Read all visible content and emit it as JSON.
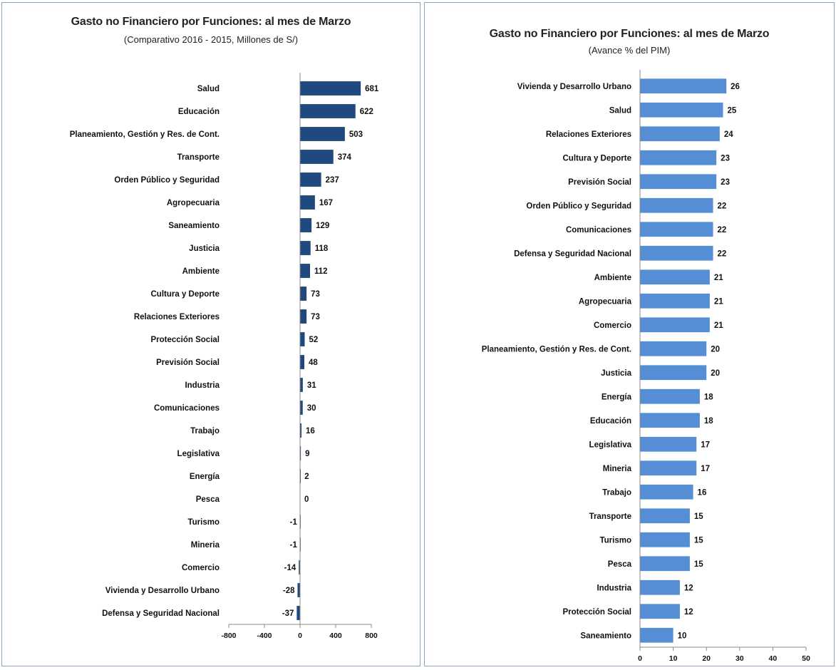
{
  "chart_data": [
    {
      "type": "bar",
      "orientation": "horizontal",
      "title": "Gasto no Financiero por Funciones: al mes de Marzo",
      "subtitle": "(Comparativo  2016 - 2015, Millones de S/)",
      "color": "#1f497d",
      "categories": [
        "Salud",
        "Educación",
        "Planeamiento, Gestión y Res. de Cont.",
        "Transporte",
        "Orden Público y Seguridad",
        "Agropecuaria",
        "Saneamiento",
        "Justicia",
        "Ambiente",
        "Cultura y Deporte",
        "Relaciones Exteriores",
        "Protección Social",
        "Previsión Social",
        "Industria",
        "Comunicaciones",
        "Trabajo",
        "Legislativa",
        "Energía",
        "Pesca",
        "Turismo",
        "Mineria",
        "Comercio",
        "Vivienda y Desarrollo Urbano",
        "Defensa y Seguridad Nacional"
      ],
      "values": [
        681,
        622,
        503,
        374,
        237,
        167,
        129,
        118,
        112,
        73,
        73,
        52,
        48,
        31,
        30,
        16,
        9,
        2,
        0,
        -1,
        -1,
        -14,
        -28,
        -37
      ],
      "xlim": [
        -800,
        800
      ],
      "xticks": [
        -800,
        -400,
        0,
        400,
        800
      ],
      "grid": false
    },
    {
      "type": "bar",
      "orientation": "horizontal",
      "title": "Gasto no Financiero por Funciones: al mes de Marzo",
      "subtitle": "(Avance % del PIM)",
      "color": "#558ed5",
      "categories": [
        "Vivienda y Desarrollo Urbano",
        "Salud",
        "Relaciones Exteriores",
        "Cultura y Deporte",
        "Previsión Social",
        "Orden Público y Seguridad",
        "Comunicaciones",
        "Defensa y Seguridad Nacional",
        "Ambiente",
        "Agropecuaria",
        "Comercio",
        "Planeamiento, Gestión y Res. de Cont.",
        "Justicia",
        "Energía",
        "Educación",
        "Legislativa",
        "Mineria",
        "Trabajo",
        "Transporte",
        "Turismo",
        "Pesca",
        "Industria",
        "Protección Social",
        "Saneamiento"
      ],
      "values": [
        26,
        25,
        24,
        23,
        23,
        22,
        22,
        22,
        21,
        21,
        21,
        20,
        20,
        18,
        18,
        17,
        17,
        16,
        15,
        15,
        15,
        12,
        12,
        10
      ],
      "xlim": [
        0,
        50
      ],
      "xticks": [
        0,
        10,
        20,
        30,
        40,
        50
      ],
      "grid": false
    }
  ]
}
